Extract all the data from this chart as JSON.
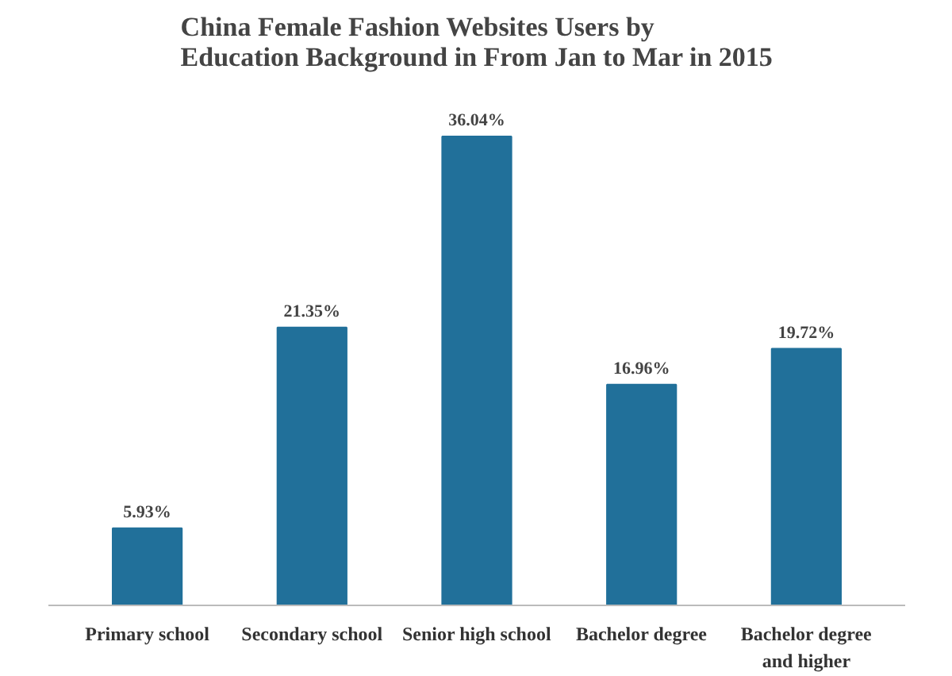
{
  "chart_data": {
    "type": "bar",
    "title": "China Female Fashion Websites Users by\nEducation Background in From Jan to Mar in 2015",
    "categories": [
      "Primary school",
      "Secondary school",
      "Senior high school",
      "Bachelor degree",
      "Bachelor degree\nand higher"
    ],
    "values": [
      5.93,
      21.35,
      36.04,
      16.96,
      19.72
    ],
    "value_labels": [
      "5.93%",
      "21.35%",
      "36.04%",
      "16.96%",
      "19.72%"
    ],
    "color": "#21709a",
    "grid": false
  }
}
